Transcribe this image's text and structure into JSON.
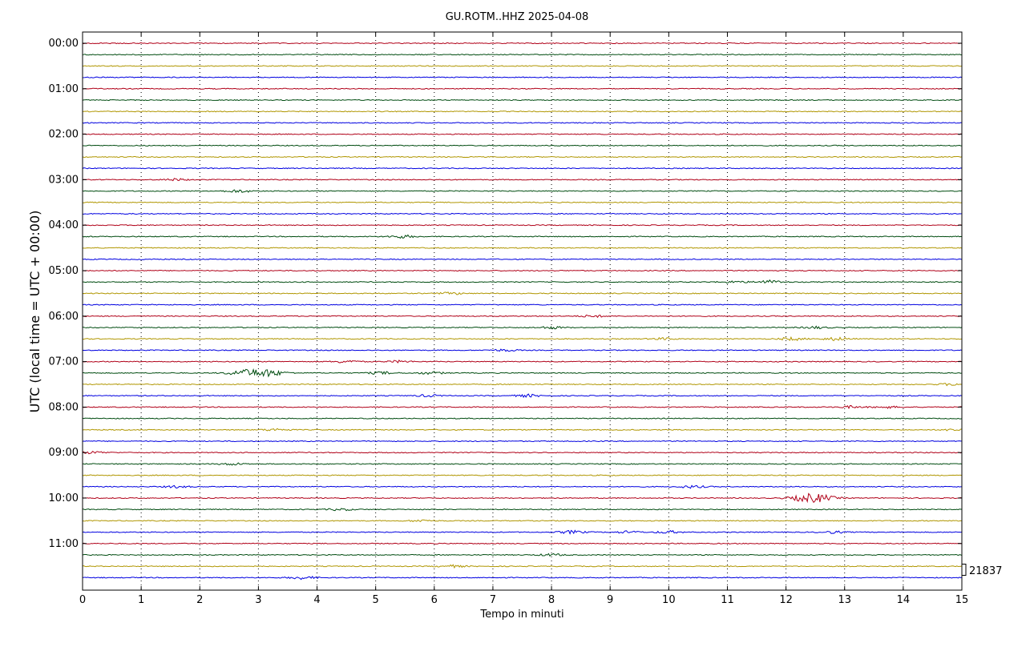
{
  "chart_data": {
    "type": "line",
    "title": "GU.ROTM..HHZ 2025-04-08",
    "xlabel": "Tempo in minuti",
    "ylabel": "UTC (local time = UTC + 00:00)",
    "xlim": [
      0,
      15
    ],
    "x_ticks": [
      "0",
      "1",
      "2",
      "3",
      "4",
      "5",
      "6",
      "7",
      "8",
      "9",
      "10",
      "11",
      "12",
      "13",
      "14",
      "15"
    ],
    "y_ticks": [
      "00:00",
      "01:00",
      "02:00",
      "03:00",
      "04:00",
      "05:00",
      "06:00",
      "07:00",
      "08:00",
      "09:00",
      "10:00",
      "11:00"
    ],
    "trace_interval_minutes": 15,
    "trace_count": 48,
    "scale_label": "21837",
    "grid": true,
    "colors": [
      "#b00018",
      "#004c10",
      "#b09600",
      "#0000e0"
    ],
    "events": [
      {
        "trace": 12,
        "minute": 1.6,
        "amp": 1.2
      },
      {
        "trace": 13,
        "minute": 2.65,
        "amp": 1.6
      },
      {
        "trace": 17,
        "minute": 5.45,
        "amp": 1.8
      },
      {
        "trace": 21,
        "minute": 11.7,
        "amp": 2.0
      },
      {
        "trace": 21,
        "minute": 11.1,
        "amp": 1.2
      },
      {
        "trace": 22,
        "minute": 6.3,
        "amp": 1.3
      },
      {
        "trace": 24,
        "minute": 8.7,
        "amp": 1.3
      },
      {
        "trace": 25,
        "minute": 8.0,
        "amp": 1.4
      },
      {
        "trace": 25,
        "minute": 12.5,
        "amp": 1.3
      },
      {
        "trace": 26,
        "minute": 12.1,
        "amp": 1.7
      },
      {
        "trace": 26,
        "minute": 12.85,
        "amp": 1.8
      },
      {
        "trace": 26,
        "minute": 9.9,
        "amp": 1.2
      },
      {
        "trace": 27,
        "minute": 7.2,
        "amp": 1.2
      },
      {
        "trace": 28,
        "minute": 4.5,
        "amp": 1.5
      },
      {
        "trace": 28,
        "minute": 5.4,
        "amp": 1.2
      },
      {
        "trace": 29,
        "minute": 2.75,
        "amp": 3.5
      },
      {
        "trace": 29,
        "minute": 3.15,
        "amp": 4.0
      },
      {
        "trace": 29,
        "minute": 5.1,
        "amp": 1.5
      },
      {
        "trace": 29,
        "minute": 5.95,
        "amp": 1.5
      },
      {
        "trace": 30,
        "minute": 14.8,
        "amp": 1.2
      },
      {
        "trace": 31,
        "minute": 7.6,
        "amp": 1.5
      },
      {
        "trace": 31,
        "minute": 5.9,
        "amp": 1.2
      },
      {
        "trace": 32,
        "minute": 13.1,
        "amp": 1.3
      },
      {
        "trace": 32,
        "minute": 13.7,
        "amp": 1.3
      },
      {
        "trace": 34,
        "minute": 3.3,
        "amp": 1.4
      },
      {
        "trace": 34,
        "minute": 14.9,
        "amp": 1.3
      },
      {
        "trace": 36,
        "minute": 0.2,
        "amp": 1.3
      },
      {
        "trace": 37,
        "minute": 2.55,
        "amp": 1.3
      },
      {
        "trace": 39,
        "minute": 10.4,
        "amp": 1.5
      },
      {
        "trace": 39,
        "minute": 1.6,
        "amp": 1.2
      },
      {
        "trace": 40,
        "minute": 12.45,
        "amp": 5.5
      },
      {
        "trace": 41,
        "minute": 4.4,
        "amp": 1.2
      },
      {
        "trace": 42,
        "minute": 5.8,
        "amp": 1.3
      },
      {
        "trace": 43,
        "minute": 8.35,
        "amp": 1.8
      },
      {
        "trace": 43,
        "minute": 9.3,
        "amp": 1.3
      },
      {
        "trace": 43,
        "minute": 10.0,
        "amp": 1.5
      },
      {
        "trace": 43,
        "minute": 12.8,
        "amp": 1.3
      },
      {
        "trace": 45,
        "minute": 8.0,
        "amp": 1.3
      },
      {
        "trace": 46,
        "minute": 6.3,
        "amp": 1.4
      },
      {
        "trace": 47,
        "minute": 3.75,
        "amp": 1.8
      }
    ]
  }
}
